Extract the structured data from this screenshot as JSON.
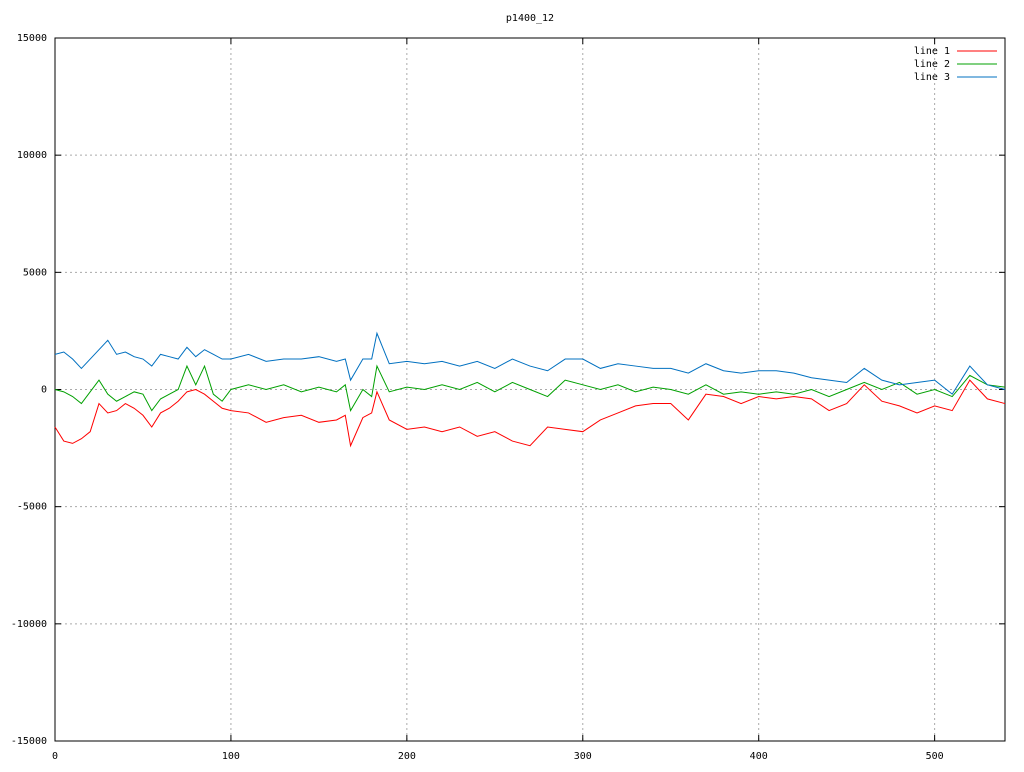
{
  "chart_data": {
    "type": "line",
    "title": "p1400_12",
    "x": [
      0,
      5,
      10,
      15,
      20,
      25,
      30,
      35,
      40,
      45,
      50,
      55,
      60,
      65,
      70,
      75,
      80,
      85,
      90,
      95,
      100,
      110,
      120,
      130,
      140,
      150,
      160,
      165,
      168,
      175,
      180,
      183,
      190,
      200,
      210,
      220,
      230,
      240,
      250,
      260,
      270,
      280,
      290,
      300,
      310,
      320,
      330,
      340,
      350,
      360,
      370,
      380,
      390,
      400,
      410,
      420,
      430,
      440,
      450,
      460,
      470,
      480,
      490,
      500,
      510,
      520,
      530,
      540
    ],
    "series": [
      {
        "name": "line 1",
        "color": "#ff0000",
        "values": [
          -1600,
          -2200,
          -2300,
          -2100,
          -1800,
          -600,
          -1000,
          -900,
          -600,
          -800,
          -1100,
          -1600,
          -1000,
          -800,
          -500,
          -100,
          0,
          -200,
          -500,
          -800,
          -900,
          -1000,
          -1400,
          -1200,
          -1100,
          -1400,
          -1300,
          -1100,
          -2400,
          -1200,
          -1000,
          -100,
          -1300,
          -1700,
          -1600,
          -1800,
          -1600,
          -2000,
          -1800,
          -2200,
          -2400,
          -1600,
          -1700,
          -1800,
          -1300,
          -1000,
          -700,
          -600,
          -600,
          -1300,
          -200,
          -300,
          -600,
          -300,
          -400,
          -300,
          -400,
          -900,
          -600,
          200,
          -500,
          -700,
          -1000,
          -700,
          -900,
          400,
          -400,
          -600
        ]
      },
      {
        "name": "line 2",
        "color": "#00a000",
        "values": [
          0,
          -100,
          -300,
          -600,
          -100,
          400,
          -200,
          -500,
          -300,
          -100,
          -200,
          -900,
          -400,
          -200,
          0,
          1000,
          200,
          1000,
          -200,
          -500,
          0,
          200,
          0,
          200,
          -100,
          100,
          -100,
          200,
          -900,
          0,
          -300,
          1000,
          -100,
          100,
          0,
          200,
          0,
          300,
          -100,
          300,
          0,
          -300,
          400,
          200,
          0,
          200,
          -100,
          100,
          0,
          -200,
          200,
          -200,
          -100,
          -200,
          -100,
          -200,
          0,
          -300,
          0,
          300,
          0,
          300,
          -200,
          0,
          -300,
          600,
          200,
          100
        ]
      },
      {
        "name": "line 3",
        "color": "#0070c0",
        "values": [
          1500,
          1600,
          1300,
          900,
          1300,
          1700,
          2100,
          1500,
          1600,
          1400,
          1300,
          1000,
          1500,
          1400,
          1300,
          1800,
          1400,
          1700,
          1500,
          1300,
          1300,
          1500,
          1200,
          1300,
          1300,
          1400,
          1200,
          1300,
          400,
          1300,
          1300,
          2400,
          1100,
          1200,
          1100,
          1200,
          1000,
          1200,
          900,
          1300,
          1000,
          800,
          1300,
          1300,
          900,
          1100,
          1000,
          900,
          900,
          700,
          1100,
          800,
          700,
          800,
          800,
          700,
          500,
          400,
          300,
          900,
          400,
          200,
          300,
          400,
          -200,
          1000,
          200,
          0
        ]
      }
    ],
    "xlim": [
      0,
      540
    ],
    "xticks": [
      0,
      100,
      200,
      300,
      400,
      500
    ],
    "ylim": [
      -15000,
      15000
    ],
    "yticks": [
      -15000,
      -10000,
      -5000,
      0,
      5000,
      10000,
      15000
    ],
    "grid": true,
    "legend": "top-right"
  }
}
